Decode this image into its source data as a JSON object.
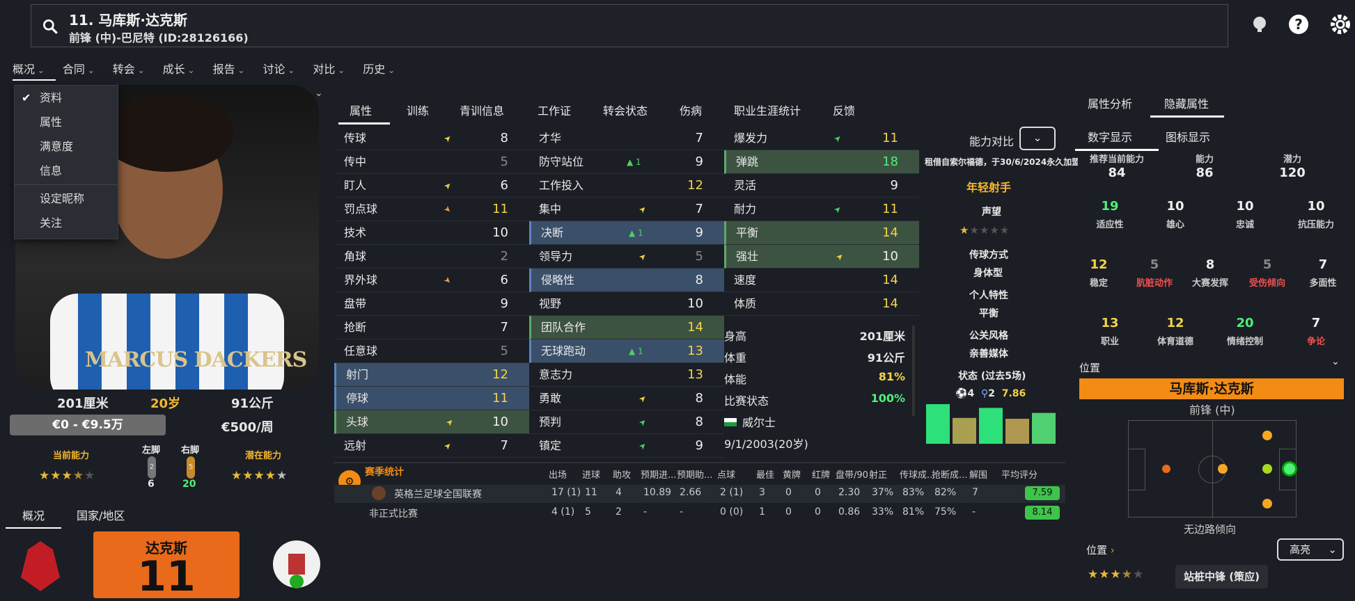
{
  "header": {
    "title": "11. 马库斯·达克斯",
    "subtitle": "前锋 (中)-巴尼特 (ID:28126166)"
  },
  "menu": [
    "概况",
    "合同",
    "转会",
    "成长",
    "报告",
    "讨论",
    "对比",
    "历史"
  ],
  "dropdown": [
    "资料",
    "属性",
    "满意度",
    "信息",
    "设定昵称",
    "关注"
  ],
  "photo_name": "MARCUS DACKERS",
  "player": {
    "height": "201厘米",
    "age": "20岁",
    "weight": "91公斤",
    "value": "€0 - €9.5万",
    "wage": "€500/周",
    "current_ability_label": "当前能力",
    "left_foot_label": "左脚",
    "right_foot_label": "右脚",
    "potential_label": "潜在能力",
    "left_foot_small": "2",
    "left_foot_value": "6",
    "right_foot_small": "5",
    "right_foot_value": "20",
    "current_stars": 3.5,
    "potential_stars": 4.5
  },
  "bottom_tabs": [
    "概况",
    "国家/地区"
  ],
  "shirt": {
    "name": "达克斯",
    "number": "11"
  },
  "mid_tabs": [
    "属性",
    "训练",
    "青训信息",
    "工作证",
    "转会状态",
    "伤病",
    "职业生涯统计",
    "反馈"
  ],
  "technical": [
    {
      "name": "传球",
      "value": "8",
      "change": "up-y",
      "color": "wht"
    },
    {
      "name": "传中",
      "value": "5",
      "change": "",
      "color": "grey"
    },
    {
      "name": "盯人",
      "value": "6",
      "change": "up-y",
      "color": "wht"
    },
    {
      "name": "罚点球",
      "value": "11",
      "change": "down-o",
      "color": "yel"
    },
    {
      "name": "技术",
      "value": "10",
      "change": "",
      "color": "wht"
    },
    {
      "name": "角球",
      "value": "2",
      "change": "",
      "color": "grey"
    },
    {
      "name": "界外球",
      "value": "6",
      "change": "down-o",
      "color": "wht"
    },
    {
      "name": "盘带",
      "value": "9",
      "change": "",
      "color": "wht"
    },
    {
      "name": "抢断",
      "value": "7",
      "change": "",
      "color": "wht"
    },
    {
      "name": "任意球",
      "value": "5",
      "change": "",
      "color": "grey"
    },
    {
      "name": "射门",
      "value": "12",
      "change": "",
      "color": "yel",
      "hl": "blue"
    },
    {
      "name": "停球",
      "value": "11",
      "change": "",
      "color": "yel",
      "hl": "blue"
    },
    {
      "name": "头球",
      "value": "10",
      "change": "up-y",
      "color": "wht",
      "hl": "green"
    },
    {
      "name": "远射",
      "value": "7",
      "change": "up-y",
      "color": "wht"
    }
  ],
  "mental": [
    {
      "name": "才华",
      "value": "7",
      "change": "",
      "color": "wht"
    },
    {
      "name": "防守站位",
      "value": "9",
      "change": "▲ 1",
      "color": "wht"
    },
    {
      "name": "工作投入",
      "value": "12",
      "change": "",
      "color": "yel"
    },
    {
      "name": "集中",
      "value": "7",
      "change": "up-y",
      "color": "wht"
    },
    {
      "name": "决断",
      "value": "9",
      "change": "▲ 1",
      "color": "wht",
      "hl": "blue"
    },
    {
      "name": "领导力",
      "value": "5",
      "change": "up-y",
      "color": "grey"
    },
    {
      "name": "侵略性",
      "value": "8",
      "change": "",
      "color": "wht",
      "hl": "blue"
    },
    {
      "name": "视野",
      "value": "10",
      "change": "",
      "color": "wht"
    },
    {
      "name": "团队合作",
      "value": "14",
      "change": "",
      "color": "yel",
      "hl": "green"
    },
    {
      "name": "无球跑动",
      "value": "13",
      "change": "▲ 1",
      "color": "yel",
      "hl": "blue"
    },
    {
      "name": "意志力",
      "value": "13",
      "change": "",
      "color": "yel"
    },
    {
      "name": "勇敢",
      "value": "8",
      "change": "up-y",
      "color": "wht"
    },
    {
      "name": "预判",
      "value": "8",
      "change": "up-g",
      "color": "wht"
    },
    {
      "name": "镇定",
      "value": "9",
      "change": "up-g",
      "color": "wht"
    }
  ],
  "physical": [
    {
      "name": "爆发力",
      "value": "11",
      "change": "up-g",
      "color": "yel"
    },
    {
      "name": "弹跳",
      "value": "18",
      "change": "",
      "color": "grn",
      "hl": "green"
    },
    {
      "name": "灵活",
      "value": "9",
      "change": "",
      "color": "wht"
    },
    {
      "name": "耐力",
      "value": "11",
      "change": "up-g",
      "color": "yel"
    },
    {
      "name": "平衡",
      "value": "14",
      "change": "",
      "color": "yel",
      "hl": "green"
    },
    {
      "name": "强壮",
      "value": "10",
      "change": "up-y",
      "color": "wht",
      "hl": "green"
    },
    {
      "name": "速度",
      "value": "14",
      "change": "",
      "color": "yel"
    },
    {
      "name": "体质",
      "value": "14",
      "change": "",
      "color": "yel"
    }
  ],
  "info": [
    {
      "k": "身高",
      "v": "201厘米"
    },
    {
      "k": "体重",
      "v": "91公斤"
    },
    {
      "k": "体能",
      "v": "81%"
    },
    {
      "k": "比赛状态",
      "v": "100%"
    }
  ],
  "nation": "威尔士",
  "dob": "9/1/2003(20岁)",
  "compare": {
    "label": "能力对比",
    "note": "租借自索尔福德，于30/6/2024永久加盟",
    "tag": "年轻射手",
    "rep_label": "声望",
    "rep_stars": 1,
    "pass_label": "传球方式",
    "pass_val": "身体型",
    "pers_label": "个人特性",
    "pers_val": "平衡",
    "media_label": "公关风格",
    "media_val": "亲善媒体",
    "form_label": "状态 (过去5场)",
    "goals": "4",
    "assists": "2",
    "avg": "7.86",
    "form": [
      0.95,
      0.62,
      0.86,
      0.6,
      0.74
    ]
  },
  "season": {
    "title": "赛季统计",
    "cols": [
      "出场",
      "进球",
      "助攻",
      "预期进...",
      "预期助...",
      "点球",
      "最佳",
      "黄牌",
      "红牌",
      "盘带/90",
      "射正",
      "传球成...",
      "抢断成...",
      "解围",
      "平均评分"
    ],
    "rows": [
      {
        "name": "英格兰足球全国联赛",
        "vals": [
          "17 (1)",
          "11",
          "4",
          "10.89",
          "2.66",
          "2 (1)",
          "3",
          "0",
          "0",
          "2.30",
          "37%",
          "83%",
          "82%",
          "7"
        ],
        "rating": "7.59"
      },
      {
        "name": "非正式比赛",
        "vals": [
          "4 (1)",
          "5",
          "2",
          "-",
          "-",
          "0 (0)",
          "1",
          "0",
          "0",
          "0.86",
          "33%",
          "81%",
          "75%",
          "-"
        ],
        "rating": "8.14"
      }
    ]
  },
  "right": {
    "tabs": [
      "属性分析",
      "隐藏属性"
    ],
    "subtabs": [
      "数字显示",
      "图标显示"
    ],
    "top": [
      {
        "t": "推荐当前能力",
        "n": "84"
      },
      {
        "t": "能力",
        "n": "86"
      },
      {
        "t": "潜力",
        "n": "120"
      }
    ],
    "rows": [
      [
        {
          "n": "19",
          "t": "适应性",
          "c": "#4ef07a"
        },
        {
          "n": "10",
          "t": "雄心",
          "c": "#eee"
        },
        {
          "n": "10",
          "t": "忠诚",
          "c": "#eee"
        },
        {
          "n": "10",
          "t": "抗压能力",
          "c": "#eee"
        }
      ],
      [
        {
          "n": "12",
          "t": "稳定",
          "c": "#f5d24a"
        },
        {
          "n": "5",
          "t": "肮脏动作",
          "c": "#888",
          "tc": "#f05050"
        },
        {
          "n": "8",
          "t": "大赛发挥",
          "c": "#eee"
        },
        {
          "n": "5",
          "t": "受伤倾向",
          "c": "#888",
          "tc": "#f05050"
        },
        {
          "n": "7",
          "t": "多面性",
          "c": "#eee"
        }
      ],
      [
        {
          "n": "13",
          "t": "职业",
          "c": "#f5d24a"
        },
        {
          "n": "12",
          "t": "体育道德",
          "c": "#f5d24a"
        },
        {
          "n": "20",
          "t": "情绪控制",
          "c": "#4ef07a"
        },
        {
          "n": "7",
          "t": "争论",
          "c": "#eee",
          "tc": "#f05050"
        }
      ]
    ],
    "pos_label": "位置",
    "pos_name": "马库斯·达克斯",
    "pos_role": "前锋 (中)",
    "pos_note": "无边路倾向",
    "pos2_label": "位置",
    "pos_select": "高亮",
    "role": "站桩中锋 (策应)",
    "role_stars": 3.5
  },
  "colors": {
    "accent": "#f28c14",
    "yellow": "#f5d24a",
    "green": "#4ef07a",
    "blue_hl": "#3a4f69",
    "green_hl": "#3d5342"
  }
}
